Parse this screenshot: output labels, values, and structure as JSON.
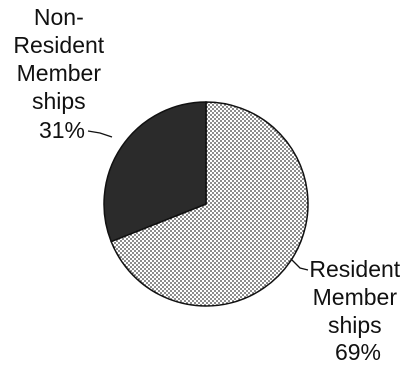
{
  "chart_data": {
    "type": "pie",
    "title": "",
    "slices": [
      {
        "label_lines": [
          "Resident",
          "Member",
          "ships"
        ],
        "percent_label": "69%",
        "value": 69,
        "pattern": "dotted-light"
      },
      {
        "label_lines": [
          "Non-",
          "Resident",
          "Member",
          "ships"
        ],
        "percent_label": "31%",
        "value": 31,
        "pattern": "dark"
      }
    ],
    "colors": {
      "dark_fill": "#2b2b2b",
      "dot_color": "#3a3a3a",
      "outline": "#111111"
    }
  }
}
